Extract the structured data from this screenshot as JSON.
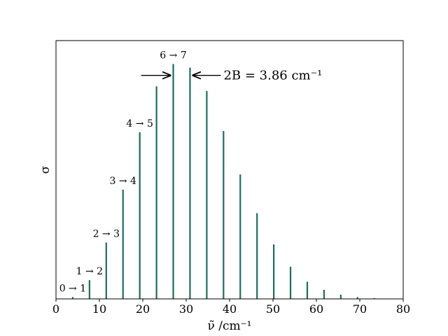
{
  "chart_data": {
    "type": "bar",
    "xlabel": "ν̃ /cm⁻¹",
    "ylabel": "σ",
    "xlim": [
      0,
      80
    ],
    "ylim": [
      0,
      1.1
    ],
    "xticks": [
      0,
      10,
      20,
      30,
      40,
      50,
      60,
      70,
      80
    ],
    "grid": false,
    "bar_color": "#1f6b5e",
    "x": [
      3.86,
      7.72,
      11.58,
      15.44,
      19.3,
      23.16,
      27.02,
      30.88,
      34.74,
      38.6,
      42.46,
      46.32,
      50.18,
      54.04,
      57.9,
      61.76,
      65.62,
      69.48,
      73.34
    ],
    "values": [
      0.008,
      0.08,
      0.24,
      0.465,
      0.71,
      0.905,
      1.0,
      0.985,
      0.885,
      0.715,
      0.53,
      0.365,
      0.232,
      0.137,
      0.073,
      0.039,
      0.018,
      0.008,
      0.003
    ],
    "transition_labels": [
      {
        "text": "0 → 1",
        "x": 3.86
      },
      {
        "text": "1 → 2",
        "x": 7.72
      },
      {
        "text": "2 → 3",
        "x": 11.58
      },
      {
        "text": "3 → 4",
        "x": 15.44
      },
      {
        "text": "4 → 5",
        "x": 19.3
      },
      {
        "text": "6 → 7",
        "x": 27.02
      }
    ],
    "annotation": {
      "text": "2B = 3.86 cm⁻¹",
      "x_from": 27.02,
      "x_to": 30.88,
      "y": 0.952
    }
  }
}
